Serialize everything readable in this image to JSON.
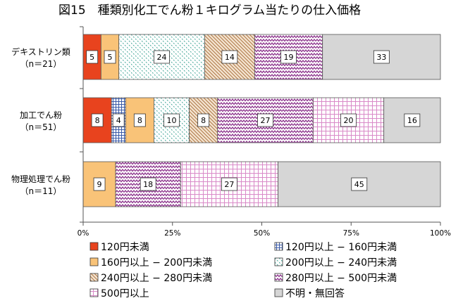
{
  "chart_data": {
    "type": "bar",
    "orientation": "horizontal",
    "stacked": "percent",
    "title": "図15　種類別化工でん粉１キログラム当たりの仕入価格",
    "categories": [
      {
        "name": "デキストリン類",
        "n": "（n＝21）"
      },
      {
        "name": "加工でん粉",
        "n": "（n＝51）"
      },
      {
        "name": "物理処理でん粉",
        "n": "（n＝11）"
      }
    ],
    "series": [
      {
        "name": "120円未満",
        "values": [
          5,
          8,
          0
        ],
        "color": "#e8431e",
        "pattern": "solid"
      },
      {
        "name": "120円以上 − 160円未満",
        "values": [
          0,
          4,
          0
        ],
        "color": "#3a5aa8",
        "pattern": "grid"
      },
      {
        "name": "160円以上 − 200円未満",
        "values": [
          5,
          8,
          9
        ],
        "color": "#f9c378",
        "pattern": "solid"
      },
      {
        "name": "200円以上 − 240円未満",
        "values": [
          24,
          10,
          0
        ],
        "color": "#47a89a",
        "pattern": "dots"
      },
      {
        "name": "240円以上 − 280円未満",
        "values": [
          14,
          8,
          0
        ],
        "color": "#b07a4a",
        "pattern": "diag"
      },
      {
        "name": "280円以上 − 500円未満",
        "values": [
          19,
          27,
          18
        ],
        "color": "#8a2f8a",
        "pattern": "zigzag"
      },
      {
        "name": "500円以上",
        "values": [
          0,
          20,
          27
        ],
        "color": "#d98ac8",
        "pattern": "lightgrid"
      },
      {
        "name": "不明・無回答",
        "values": [
          33,
          16,
          45
        ],
        "color": "#d6d6d6",
        "pattern": "solid"
      }
    ],
    "value_labels": [
      [
        "5",
        "",
        "5",
        "24",
        "14",
        "19",
        "",
        "33"
      ],
      [
        "8",
        "4",
        "8",
        "10",
        "8",
        "27",
        "20",
        "16"
      ],
      [
        "",
        "",
        "9",
        "",
        "",
        "18",
        "27",
        "45"
      ]
    ],
    "x_ticks": [
      "0%",
      "25%",
      "50%",
      "75%",
      "100%"
    ],
    "xlim": [
      0,
      100
    ],
    "legend_position": "bottom",
    "grid": false
  }
}
